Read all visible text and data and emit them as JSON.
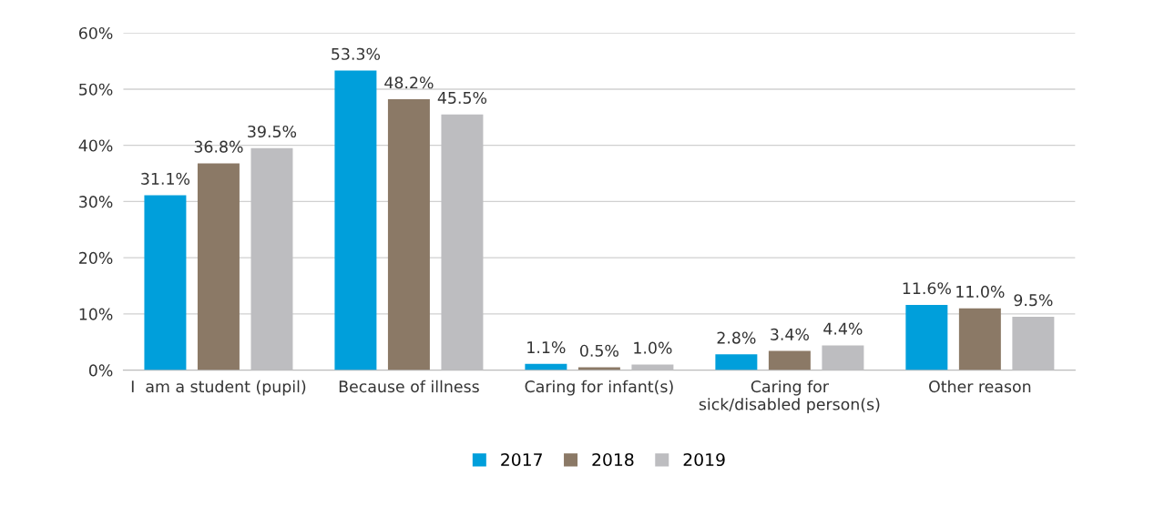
{
  "chart_data": {
    "type": "bar",
    "categories": [
      "I  am a student (pupil)",
      "Because of illness",
      "Caring for infant(s)",
      "Caring for\nsick/disabled person(s)",
      "Other reason"
    ],
    "series": [
      {
        "name": "2017",
        "color": "#009fdb",
        "values": [
          31.1,
          53.3,
          1.1,
          2.8,
          11.6
        ],
        "value_labels": [
          "31.1%",
          "53.3%",
          "1.1%",
          "2.8%",
          "11.6%"
        ]
      },
      {
        "name": "2018",
        "color": "#8b7966",
        "values": [
          36.8,
          48.2,
          0.5,
          3.4,
          11.0
        ],
        "value_labels": [
          "36.8%",
          "48.2%",
          "0.5%",
          "3.4%",
          "11.0%"
        ]
      },
      {
        "name": "2019",
        "color": "#bdbdc0",
        "values": [
          39.5,
          45.5,
          1.0,
          4.4,
          9.5
        ],
        "value_labels": [
          "39.5%",
          "45.5%",
          "1.0%",
          "4.4%",
          "9.5%"
        ]
      }
    ],
    "ylim": [
      0,
      60
    ],
    "yticks": [
      {
        "value": 0,
        "label": "0%"
      },
      {
        "value": 10,
        "label": "10%"
      },
      {
        "value": 20,
        "label": "20%"
      },
      {
        "value": 30,
        "label": "30%"
      },
      {
        "value": 40,
        "label": "40%"
      },
      {
        "value": 50,
        "label": "50%"
      },
      {
        "value": 60,
        "label": "60%"
      }
    ],
    "grid": "y",
    "legend": "bottom"
  }
}
